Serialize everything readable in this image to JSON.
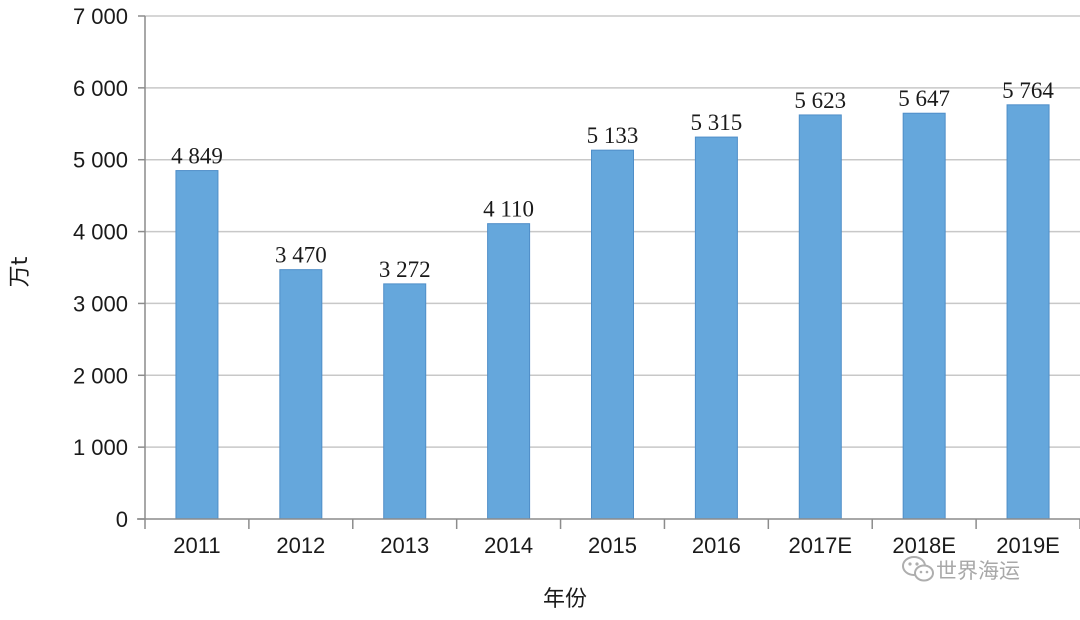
{
  "chart_data": {
    "type": "bar",
    "categories": [
      "2011",
      "2012",
      "2013",
      "2014",
      "2015",
      "2016",
      "2017E",
      "2018E",
      "2019E"
    ],
    "values": [
      4849,
      3470,
      3272,
      4110,
      5133,
      5315,
      5623,
      5647,
      5764
    ],
    "value_labels": [
      "4 849",
      "3 470",
      "3 272",
      "4 110",
      "5 133",
      "5 315",
      "5 623",
      "5 647",
      "5 764"
    ],
    "ylim": [
      0,
      7000
    ],
    "yticks": [
      0,
      1000,
      2000,
      3000,
      4000,
      5000,
      6000,
      7000
    ],
    "ytick_labels": [
      "0",
      "1 000",
      "2 000",
      "3 000",
      "4 000",
      "5 000",
      "6 000",
      "7 000"
    ],
    "ylabel": "万t",
    "xlabel": "年份",
    "grid": "horizontal",
    "bar_color": "#65a7dc",
    "grid_color": "#c8c8c8"
  },
  "watermark": {
    "text": "世界海运",
    "icon": "wechat-icon"
  }
}
